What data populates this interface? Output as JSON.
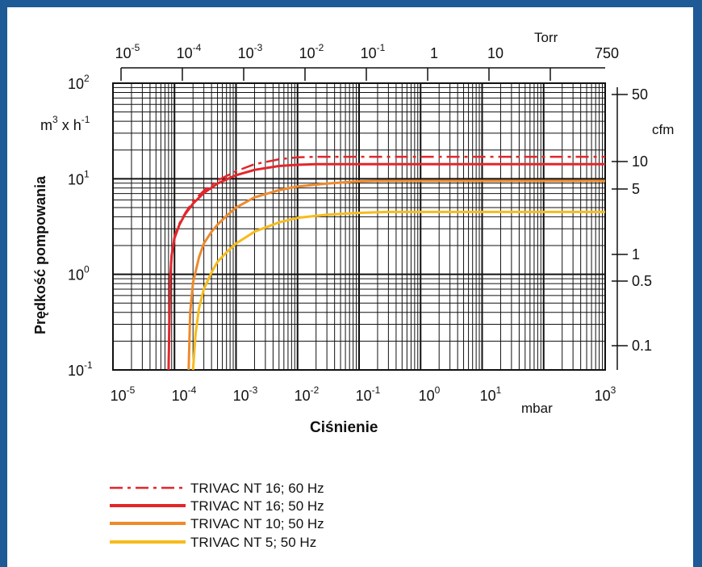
{
  "chart_data": {
    "type": "line",
    "title": "",
    "ylabel": "Prędkość pompowania",
    "y_unit": "m³ x h⁻¹",
    "xlabel": "Ciśnienie",
    "x_unit": "mbar",
    "x_scale": "log",
    "y_scale": "log",
    "xlim": [
      1e-05,
      1000
    ],
    "ylim": [
      0.1,
      100
    ],
    "grid": true,
    "legend_position": "bottom-left",
    "x_ticks": [
      {
        "base": "10",
        "exp": "-5"
      },
      {
        "base": "10",
        "exp": "-4"
      },
      {
        "base": "10",
        "exp": "-3"
      },
      {
        "base": "10",
        "exp": "-2"
      },
      {
        "base": "10",
        "exp": "-1"
      },
      {
        "base": "10",
        "exp": "0"
      },
      {
        "base": "10",
        "exp": "1"
      },
      {
        "base": "10",
        "exp": "3"
      }
    ],
    "y_ticks": [
      {
        "base": "10",
        "exp": "-1",
        "value": 0.1
      },
      {
        "base": "10",
        "exp": "0",
        "value": 1
      },
      {
        "base": "10",
        "exp": "1",
        "value": 10
      },
      {
        "base": "10",
        "exp": "2",
        "value": 100
      }
    ],
    "top_axis": {
      "unit": "Torr",
      "ticks": [
        {
          "base": "10",
          "exp": "-5"
        },
        {
          "base": "10",
          "exp": "-4"
        },
        {
          "base": "10",
          "exp": "-3"
        },
        {
          "base": "10",
          "exp": "-2"
        },
        {
          "base": "10",
          "exp": "-1"
        },
        {
          "base": "1",
          "exp": ""
        },
        {
          "base": "10",
          "exp": ""
        },
        {
          "base": "750",
          "exp": ""
        }
      ]
    },
    "right_axis": {
      "unit": "cfm",
      "ticks": [
        "50",
        "10",
        "5",
        "1",
        "0.5",
        "0.1"
      ]
    },
    "series": [
      {
        "name": "TRIVAC NT 16; 60 Hz",
        "color": "#e3262b",
        "style": "dashdot",
        "x": [
          8e-05,
          8.5e-05,
          9e-05,
          0.0001,
          0.00012,
          0.00015,
          0.0002,
          0.0003,
          0.0005,
          0.001,
          0.002,
          0.005,
          0.01,
          0.02,
          1000
        ],
        "y": [
          0.1,
          0.9,
          1.7,
          2.5,
          3.4,
          4.4,
          5.8,
          7.5,
          9.6,
          12.0,
          14.2,
          16.0,
          16.8,
          17.0,
          17.0
        ]
      },
      {
        "name": "TRIVAC NT 16; 50 Hz",
        "color": "#e3262b",
        "style": "solid",
        "x": [
          8e-05,
          8.5e-05,
          9e-05,
          0.0001,
          0.00012,
          0.00015,
          0.0002,
          0.0003,
          0.0005,
          0.001,
          0.002,
          0.005,
          0.01,
          0.02,
          1000
        ],
        "y": [
          0.1,
          0.9,
          1.6,
          2.4,
          3.3,
          4.3,
          5.5,
          7.1,
          8.9,
          10.9,
          12.4,
          13.6,
          14.0,
          14.2,
          14.2
        ]
      },
      {
        "name": "TRIVAC NT 10; 50 Hz",
        "color": "#ee8a2c",
        "style": "solid",
        "x": [
          0.00017,
          0.00018,
          0.0002,
          0.00025,
          0.0003,
          0.0004,
          0.0005,
          0.0007,
          0.001,
          0.002,
          0.005,
          0.01,
          0.03,
          0.1,
          0.2,
          1000
        ],
        "y": [
          0.1,
          0.4,
          0.82,
          1.5,
          2.1,
          2.8,
          3.3,
          4.1,
          5.0,
          6.4,
          7.6,
          8.3,
          8.9,
          9.4,
          9.5,
          9.5
        ]
      },
      {
        "name": "TRIVAC NT 5; 50 Hz",
        "color": "#f7bb1c",
        "style": "solid",
        "x": [
          0.0002,
          0.00022,
          0.00025,
          0.0003,
          0.0004,
          0.0005,
          0.0007,
          0.001,
          0.002,
          0.005,
          0.01,
          0.03,
          0.1,
          0.3,
          1000
        ],
        "y": [
          0.1,
          0.24,
          0.44,
          0.7,
          1.05,
          1.35,
          1.7,
          2.1,
          2.8,
          3.5,
          3.9,
          4.2,
          4.4,
          4.5,
          4.5
        ]
      }
    ]
  }
}
